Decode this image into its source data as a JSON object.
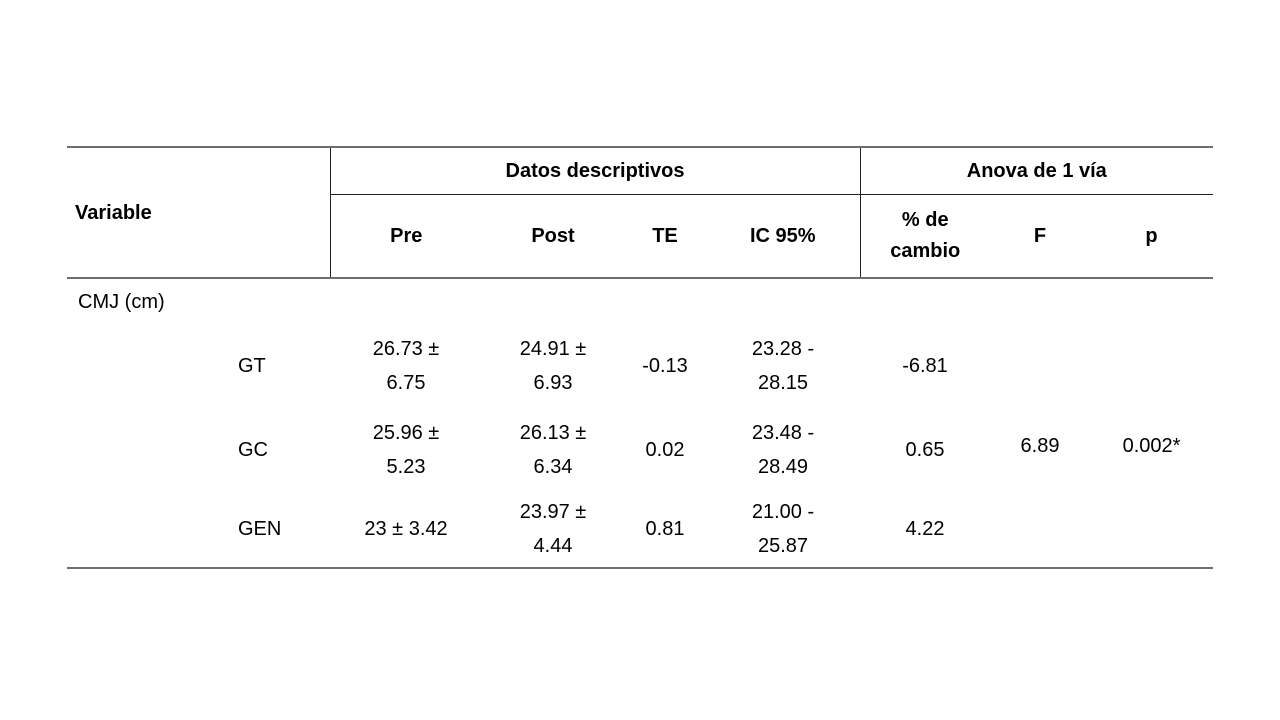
{
  "table": {
    "header": {
      "variable": "Variable",
      "group_descriptive": "Datos descriptivos",
      "group_anova": "Anova de 1 vía",
      "col_pre": "Pre",
      "col_post": "Post",
      "col_te": "TE",
      "col_ic": "IC 95%",
      "col_cambio": "% de\ncambio",
      "col_f": "F",
      "col_p": "p"
    },
    "body": {
      "section_label": "CMJ (cm)",
      "rows": [
        {
          "label": "GT",
          "pre": "26.73 ±\n6.75",
          "post": "24.91 ±\n6.93",
          "te": "-0.13",
          "ic": "23.28 -\n28.15",
          "cambio": "-6.81"
        },
        {
          "label": "GC",
          "pre": "25.96 ±\n5.23",
          "post": "26.13 ±\n6.34",
          "te": "0.02",
          "ic": "23.48 -\n28.49",
          "cambio": "0.65"
        },
        {
          "label": "GEN",
          "pre": "23 ± 3.42",
          "post": "23.97 ±\n4.44",
          "te": "0.81",
          "ic": "21.00 -\n25.87",
          "cambio": "4.22"
        }
      ],
      "anova_f": "6.89",
      "anova_p": "0.002*"
    },
    "colors": {
      "rule_outer": "#6e6e6e",
      "rule_inner": "#222222",
      "text": "#000000",
      "background": "#ffffff"
    }
  }
}
